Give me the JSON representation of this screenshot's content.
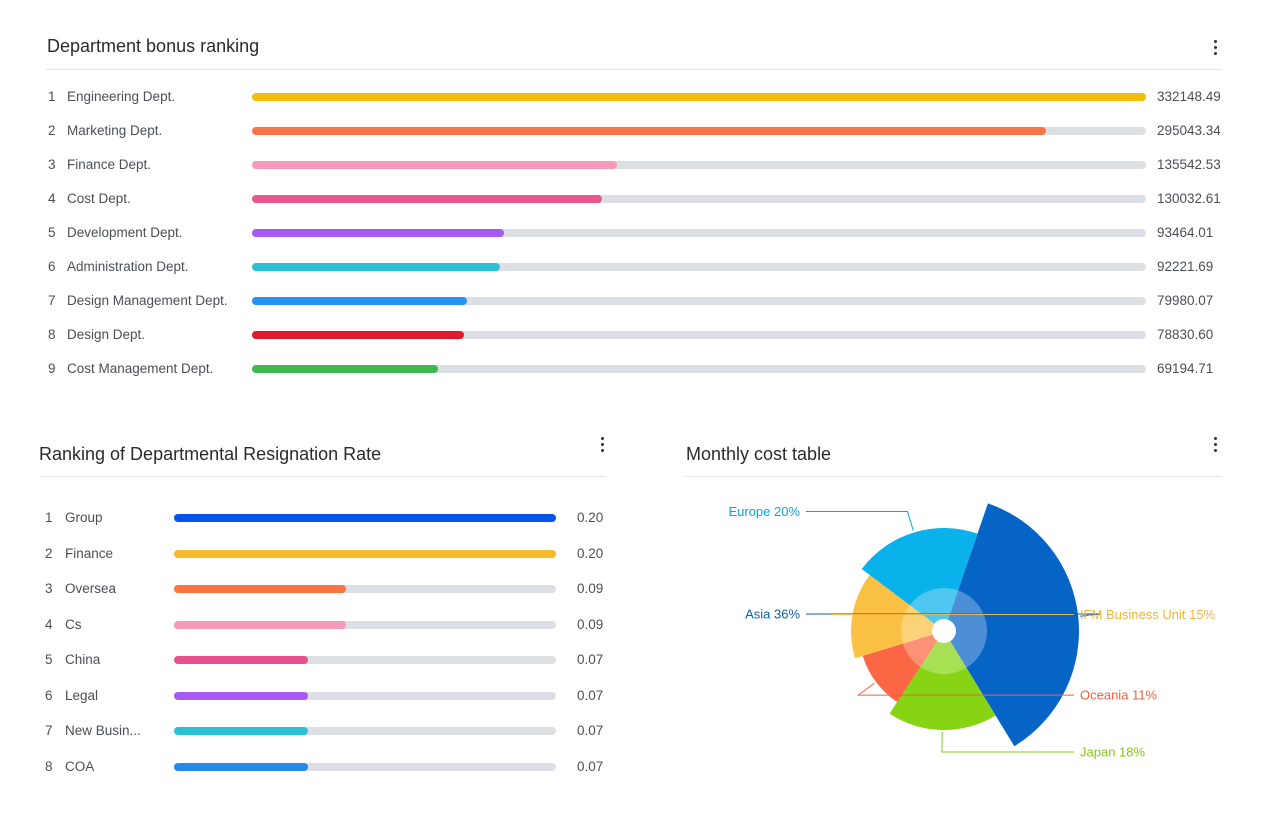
{
  "bonus": {
    "title": "Department bonus ranking",
    "chart_data": {
      "type": "bar",
      "orientation": "horizontal",
      "title": "Department bonus ranking",
      "xlim": [
        0,
        332148.49
      ],
      "items": [
        {
          "rank": "1",
          "label": "Engineering Dept.",
          "value": 332148.49,
          "display": "332148.49",
          "color": "#f5be0f"
        },
        {
          "rank": "2",
          "label": "Marketing Dept.",
          "value": 295043.34,
          "display": "295043.34",
          "color": "#fd7346"
        },
        {
          "rank": "3",
          "label": "Finance Dept.",
          "value": 135542.53,
          "display": "135542.53",
          "color": "#f59bb8"
        },
        {
          "rank": "4",
          "label": "Cost Dept.",
          "value": 130032.61,
          "display": "130032.61",
          "color": "#e9588e"
        },
        {
          "rank": "5",
          "label": "Development Dept.",
          "value": 93464.01,
          "display": "93464.01",
          "color": "#a55bf3"
        },
        {
          "rank": "6",
          "label": "Administration Dept.",
          "value": 92221.69,
          "display": "92221.69",
          "color": "#2cc1d2"
        },
        {
          "rank": "7",
          "label": "Design Management Dept.",
          "value": 79980.07,
          "display": "79980.07",
          "color": "#2592f2"
        },
        {
          "rank": "8",
          "label": "Design Dept.",
          "value": 78830.6,
          "display": "78830.60",
          "color": "#e31a2e"
        },
        {
          "rank": "9",
          "label": "Cost Management Dept.",
          "value": 69194.71,
          "display": "69194.71",
          "color": "#3cb84e"
        }
      ]
    }
  },
  "resignation": {
    "title": "Ranking of Departmental Resignation Rate",
    "chart_data": {
      "type": "bar",
      "orientation": "horizontal",
      "title": "Ranking of Departmental Resignation Rate",
      "xlim": [
        0,
        0.2
      ],
      "items": [
        {
          "rank": "1",
          "label": "Group",
          "value": 0.2,
          "display": "0.20",
          "color": "#0655e6"
        },
        {
          "rank": "2",
          "label": "Finance",
          "value": 0.2,
          "display": "0.20",
          "color": "#f6bb2a"
        },
        {
          "rank": "3",
          "label": "Oversea",
          "value": 0.09,
          "display": "0.09",
          "color": "#fb7341"
        },
        {
          "rank": "4",
          "label": "Cs",
          "value": 0.09,
          "display": "0.09",
          "color": "#f59bb8"
        },
        {
          "rank": "5",
          "label": "China",
          "value": 0.07,
          "display": "0.07",
          "color": "#e9508c"
        },
        {
          "rank": "6",
          "label": "Legal",
          "value": 0.07,
          "display": "0.07",
          "color": "#a55bf3"
        },
        {
          "rank": "7",
          "label": "New Busin...",
          "value": 0.07,
          "display": "0.07",
          "color": "#2cc1d2"
        },
        {
          "rank": "8",
          "label": "COA",
          "value": 0.07,
          "display": "0.07",
          "color": "#2588ec"
        }
      ]
    }
  },
  "monthly": {
    "title": "Monthly cost table",
    "chart_data": {
      "type": "pie",
      "variant": "rose",
      "title": "Monthly cost table",
      "series": [
        {
          "name": "Asia",
          "pct": 36,
          "label": "Asia 36%",
          "color": "#0764c7",
          "label_color": "#0a5fb3",
          "label_side": "left"
        },
        {
          "name": "Japan",
          "pct": 18,
          "label": "Japan 18%",
          "color": "#87d414",
          "label_color": "#86c91a",
          "label_side": "right"
        },
        {
          "name": "Oceania",
          "pct": 11,
          "label": "Oceania 11%",
          "color": "#fb6745",
          "label_color": "#f1603f",
          "label_side": "right"
        },
        {
          "name": "IFM Business Unit",
          "pct": 15,
          "label": "IFM Business Unit 15%",
          "color": "#fac145",
          "label_color": "#f2b53a",
          "label_side": "right"
        },
        {
          "name": "Europe",
          "pct": 20,
          "label": "Europe 20%",
          "color": "#0ab2ec",
          "label_color": "#0aa6dc",
          "label_side": "left"
        }
      ]
    }
  }
}
